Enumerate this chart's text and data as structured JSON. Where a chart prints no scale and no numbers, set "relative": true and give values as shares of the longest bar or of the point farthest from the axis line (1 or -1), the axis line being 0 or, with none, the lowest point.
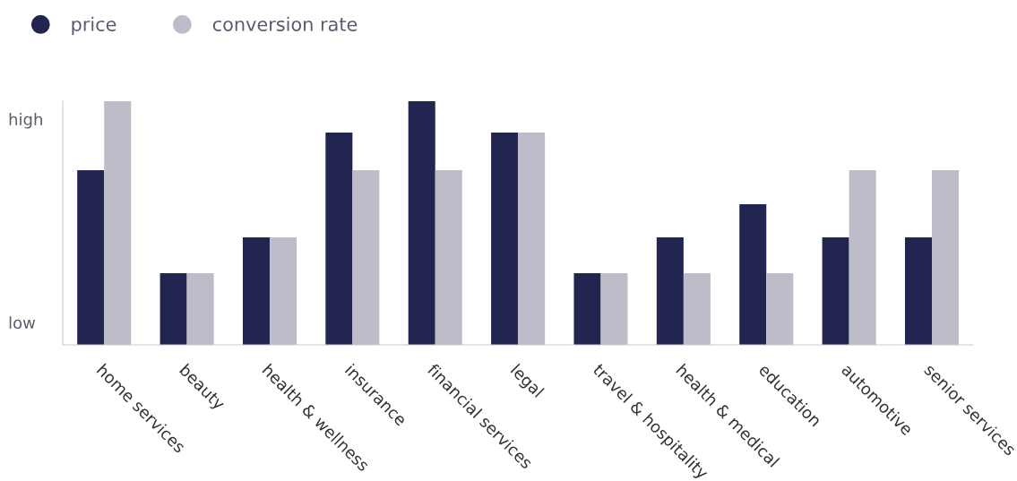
{
  "chart_data": {
    "type": "bar",
    "relative": true,
    "legend": "top left",
    "marker": "circle",
    "grid": false,
    "categories": [
      "home services",
      "beauty",
      "health & wellness",
      "insurance",
      "financial services",
      "legal",
      "travel & hospitality",
      "health & medical",
      "education",
      "automotive",
      "senior services"
    ],
    "series": [
      {
        "name": "price",
        "color": "#22254f",
        "values": [
          0.717,
          0.294,
          0.441,
          0.871,
          1,
          0.871,
          0.294,
          0.441,
          0.577,
          0.441,
          0.441
        ]
      },
      {
        "name": "conversion rate",
        "color": "#bfbcca",
        "values": [
          1,
          0.294,
          0.441,
          0.717,
          0.717,
          0.871,
          0.294,
          0.294,
          0.294,
          0.717,
          0.717
        ]
      }
    ],
    "annotations": [
      "high",
      "low"
    ]
  }
}
